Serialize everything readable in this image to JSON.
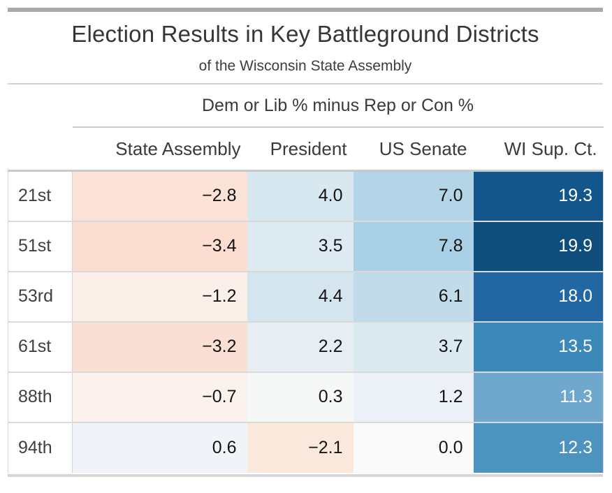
{
  "header": {
    "title": "Election Results in Key Battleground Districts",
    "subtitle": "of the Wisconsin State Assembly"
  },
  "table": {
    "spanner": "Dem or Lib % minus Rep or Con %",
    "columns": [
      "State Assembly",
      "President",
      "US Senate",
      "WI Sup. Ct."
    ],
    "rows": [
      {
        "district": "21st",
        "cells": [
          {
            "v": "−2.8",
            "bg": "#FBE3D7",
            "fg": "#141414"
          },
          {
            "v": "4.0",
            "bg": "#D8E8F1",
            "fg": "#141414"
          },
          {
            "v": "7.0",
            "bg": "#B3D5E7",
            "fg": "#141414"
          },
          {
            "v": "19.3",
            "bg": "#13568C",
            "fg": "#FFFFFF"
          }
        ]
      },
      {
        "district": "51st",
        "cells": [
          {
            "v": "−3.4",
            "bg": "#FBDED1",
            "fg": "#141414"
          },
          {
            "v": "3.5",
            "bg": "#DDEAF2",
            "fg": "#141414"
          },
          {
            "v": "7.8",
            "bg": "#A9D0E5",
            "fg": "#141414"
          },
          {
            "v": "19.9",
            "bg": "#0F4D7C",
            "fg": "#FFFFFF"
          }
        ]
      },
      {
        "district": "53rd",
        "cells": [
          {
            "v": "−1.2",
            "bg": "#FBEFE9",
            "fg": "#141414"
          },
          {
            "v": "4.4",
            "bg": "#D4E5EF",
            "fg": "#141414"
          },
          {
            "v": "6.1",
            "bg": "#C1DBEA",
            "fg": "#141414"
          },
          {
            "v": "18.0",
            "bg": "#2267A2",
            "fg": "#FFFFFF"
          }
        ]
      },
      {
        "district": "61st",
        "cells": [
          {
            "v": "−3.2",
            "bg": "#FAE0D4",
            "fg": "#141414"
          },
          {
            "v": "2.2",
            "bg": "#E6EEF4",
            "fg": "#141414"
          },
          {
            "v": "3.7",
            "bg": "#DBE9F1",
            "fg": "#141414"
          },
          {
            "v": "13.5",
            "bg": "#3C88B9",
            "fg": "#FFFFFF"
          }
        ]
      },
      {
        "district": "88th",
        "cells": [
          {
            "v": "−0.7",
            "bg": "#FCF2ED",
            "fg": "#141414"
          },
          {
            "v": "0.3",
            "bg": "#F6F8F8",
            "fg": "#141414"
          },
          {
            "v": "1.2",
            "bg": "#EBF1F6",
            "fg": "#141414"
          },
          {
            "v": "11.3",
            "bg": "#6FA8CC",
            "fg": "#FFFFFF"
          }
        ]
      },
      {
        "district": "94th",
        "cells": [
          {
            "v": "0.6",
            "bg": "#F0F3F8",
            "fg": "#141414"
          },
          {
            "v": "−2.1",
            "bg": "#FAE8DD",
            "fg": "#141414"
          },
          {
            "v": "0.0",
            "bg": "#FAFAFA",
            "fg": "#141414"
          },
          {
            "v": "12.3",
            "bg": "#4D93C0",
            "fg": "#FFFFFF"
          }
        ]
      }
    ]
  },
  "colors": {
    "top_bar": "#A9A9A9",
    "bottom_bar": "#D6D6D6",
    "rule": "#D3D3D3",
    "header_border": "#C9C9C9",
    "row_separator": "#DADADA",
    "negative_max": "#FBDED1",
    "positive_max": "#0F4D7C",
    "neutral": "#FAFAFA"
  },
  "chart_data": {
    "type": "table",
    "title": "Election Results in Key Battleground Districts",
    "subtitle": "of the Wisconsin State Assembly",
    "spanner": "Dem or Lib % minus Rep or Con %",
    "row_header": "District",
    "categories": [
      "21st",
      "51st",
      "53rd",
      "61st",
      "88th",
      "94th"
    ],
    "columns": [
      "State Assembly",
      "President",
      "US Senate",
      "WI Sup. Ct."
    ],
    "values": [
      [
        -2.8,
        4.0,
        7.0,
        19.3
      ],
      [
        -3.4,
        3.5,
        7.8,
        19.9
      ],
      [
        -1.2,
        4.4,
        6.1,
        18.0
      ],
      [
        -3.2,
        2.2,
        3.7,
        13.5
      ],
      [
        -0.7,
        0.3,
        1.2,
        11.3
      ],
      [
        0.6,
        -2.1,
        0.0,
        12.3
      ]
    ],
    "color_encoding": "diverging heatmap: negative = light red, positive = blue, darker = larger magnitude",
    "legend_position": "none",
    "grid": "row separators only"
  }
}
